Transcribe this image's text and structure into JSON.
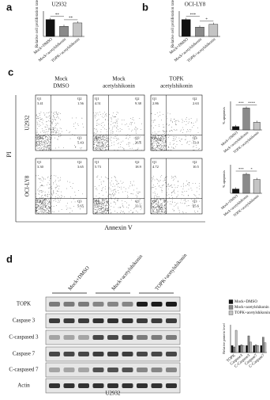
{
  "bar_colors": [
    "#111111",
    "#8a8a8a",
    "#c4c4c4"
  ],
  "panel_a": {
    "label": "a",
    "title": "U2932",
    "ylabel": "Relative cell proliferation rate",
    "categories": [
      "Mock+DMSO",
      "Mock+acetylshikonin",
      "TOPK+acetylshikonin"
    ],
    "values": [
      1.0,
      0.6,
      0.8
    ],
    "ylim": [
      0,
      1.5
    ],
    "significance": [
      "**",
      "**"
    ]
  },
  "panel_b": {
    "label": "b",
    "title": "OCI-LY8",
    "ylabel": "Relative cell proliferation rate",
    "categories": [
      "Mock+DMSO",
      "Mock+acetylshikonin",
      "TOPK+acetylshikonin"
    ],
    "values": [
      1.0,
      0.55,
      0.72
    ],
    "ylim": [
      0,
      1.5
    ],
    "significance": [
      "***",
      "*"
    ]
  },
  "panel_c": {
    "label": "c",
    "col_headers": [
      {
        "line1": "Mock",
        "line2": "DMSO"
      },
      {
        "line1": "Mock",
        "line2": "acetylshikonin"
      },
      {
        "line1": "TOPK",
        "line2": "acetylshikonin"
      }
    ],
    "rows": [
      "U2932",
      "OCI-LY8"
    ],
    "ylabel": "PI",
    "xlabel": "Annexin V",
    "quadrant_names": [
      "Q1",
      "Q2",
      "Q3",
      "Q4"
    ],
    "plots": [
      [
        {
          "q1": "3.41",
          "q2": "1.56",
          "q3": "5.43"
        },
        {
          "q1": "4.51",
          "q2": "9.38",
          "q3": "36.6"
        },
        {
          "q1": "2.86",
          "q2": "2.63",
          "q3": "13.0"
        }
      ],
      [
        {
          "q1": "3.30",
          "q2": "3.65",
          "q3": "5.65"
        },
        {
          "q1": "5.73",
          "q2": "18.9",
          "q3": "33.1"
        },
        {
          "q1": "4.72",
          "q2": "10.5",
          "q3": "25.6"
        }
      ]
    ],
    "summary": [
      {
        "ylabel": "% apoptosis",
        "categories": [
          "Mock+DMSO",
          "Mock+acetylshikonin",
          "TOPK+acetylshikonin"
        ],
        "values": [
          7,
          46,
          16
        ],
        "ylim": [
          0,
          60
        ],
        "significance": [
          "***",
          "****"
        ]
      },
      {
        "ylabel": "% apoptosis",
        "categories": [
          "Mock+DMSO",
          "Mock+acetylshikonin",
          "TOPK+acetylshikonin"
        ],
        "values": [
          9,
          40,
          29
        ],
        "ylim": [
          0,
          60
        ],
        "significance": [
          "***",
          "*"
        ]
      }
    ]
  },
  "panel_d": {
    "label": "d",
    "lanes": [
      "Mock+DMSO",
      "Mock+acetylshikonin",
      "TOPK+acetylshikonin"
    ],
    "proteins": [
      "TOPK",
      "Caspase 3",
      "C-caspased 3",
      "Caspase 7",
      "C-caspased 7",
      "Actin"
    ],
    "cell": "U2932",
    "quant": {
      "ylabel": "Relative protein level",
      "categories": [
        "TOPK",
        "Caspase3",
        "C-Caspase3",
        "Caspase7",
        "C-Caspase7"
      ],
      "series": [
        {
          "name": "Mock+DMSO",
          "values": [
            1.0,
            1.0,
            1.0,
            1.0,
            1.0
          ]
        },
        {
          "name": "Mock+acetylshikonin",
          "values": [
            0.8,
            1.1,
            2.4,
            1.1,
            2.2
          ]
        },
        {
          "name": "TOPK+acetylshikonin",
          "values": [
            3.2,
            1.0,
            1.5,
            1.0,
            1.4
          ]
        }
      ],
      "ylim": [
        0,
        4
      ]
    }
  }
}
